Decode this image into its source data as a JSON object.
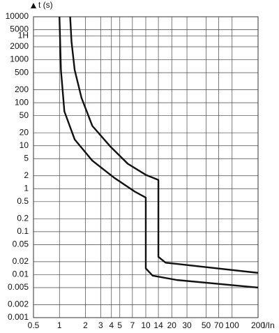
{
  "chart_data": {
    "type": "line",
    "ylabel": "t (s)",
    "xlabel": "I/In",
    "xscale": "log",
    "yscale": "log",
    "grid": true,
    "xlim": [
      0.5,
      200
    ],
    "xticks": [
      0.5,
      1,
      2,
      3,
      4,
      5,
      7,
      10,
      14,
      20,
      30,
      50,
      70,
      100,
      200
    ],
    "ylim": [
      0.001,
      10000
    ],
    "yticks": [
      0.001,
      0.002,
      0.005,
      0.01,
      0.02,
      0.05,
      0.1,
      0.2,
      0.5,
      1,
      2,
      5,
      10,
      20,
      50,
      100,
      200,
      500,
      1000,
      {
        "value": 3600,
        "label": "1H"
      },
      2000,
      5000,
      10000
    ],
    "series": [
      {
        "color": "#111111",
        "x": [
          1.33,
          1.38,
          1.5,
          1.8,
          2.4,
          3.9,
          6.2,
          10,
          14,
          14,
          17,
          200
        ],
        "values": [
          10000,
          2600,
          580,
          130,
          29,
          9.5,
          3.8,
          2.1,
          1.6,
          0.026,
          0.019,
          0.011
        ]
      },
      {
        "color": "#111111",
        "x": [
          1.0,
          1.04,
          1.14,
          1.5,
          2.4,
          4.3,
          7.5,
          10,
          10,
          12,
          23,
          200
        ],
        "values": [
          10000,
          580,
          63,
          14,
          4.5,
          1.8,
          0.85,
          0.62,
          0.014,
          0.0095,
          0.0075,
          0.005
        ]
      }
    ]
  }
}
